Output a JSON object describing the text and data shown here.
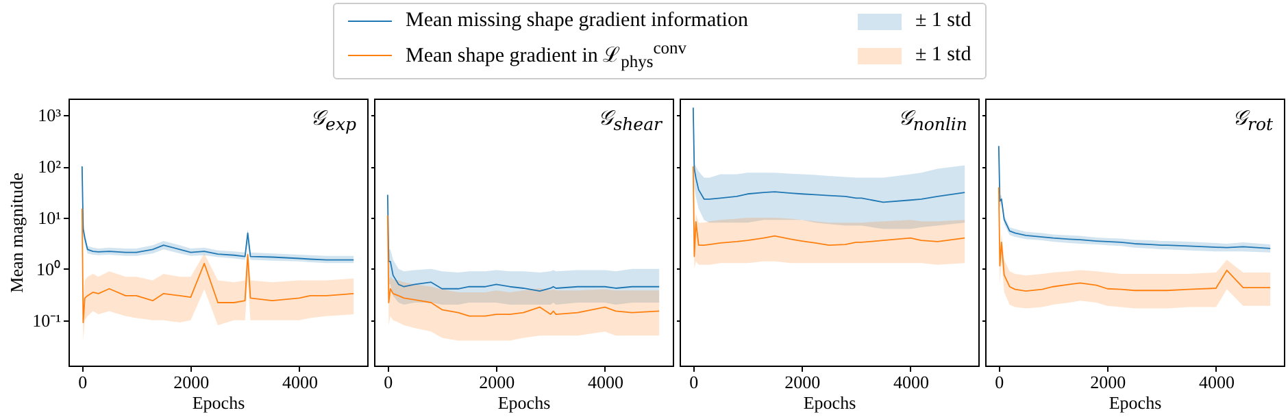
{
  "chart_data": [
    {
      "type": "line",
      "annotations": [
        "𝒢$_{exp}$",
        "± 1 std",
        "± 1 std"
      ],
      "ylabel": "Mean magnitude",
      "xlabel": "Epochs",
      "legend": "top",
      "log": true,
      "xlim": [
        -250,
        5250
      ],
      "xticks": [
        0,
        2000,
        4000
      ],
      "ylim": [
        0.013,
        2100
      ],
      "yticks": [
        {
          "value": 0.1,
          "label": "10⁻¹"
        },
        {
          "value": 1,
          "label": "10⁰"
        },
        {
          "value": 10,
          "label": "10¹"
        },
        {
          "value": 100,
          "label": "10²"
        },
        {
          "value": 1000,
          "label": "10³"
        }
      ],
      "x": [
        0,
        20,
        50,
        100,
        200,
        300,
        500,
        800,
        1000,
        1300,
        1500,
        1800,
        2000,
        2250,
        2500,
        2800,
        3000,
        3050,
        3100,
        3500,
        4000,
        4200,
        4500,
        5000
      ],
      "series": [
        {
          "name": "Mean missing shape gradient information",
          "color": "#1f77b4",
          "values": [
            100,
            6,
            4,
            2.4,
            2.2,
            2.15,
            2.2,
            2.1,
            2.1,
            2.4,
            2.9,
            2.4,
            2.1,
            2.2,
            1.95,
            1.85,
            1.75,
            5,
            1.75,
            1.7,
            1.6,
            1.55,
            1.5,
            1.5
          ],
          "lower": [
            60,
            4.5,
            3.2,
            2,
            1.9,
            1.85,
            1.9,
            1.8,
            1.8,
            2,
            2.4,
            2,
            1.8,
            1.85,
            1.7,
            1.6,
            1.5,
            3,
            1.5,
            1.45,
            1.4,
            1.35,
            1.3,
            1.3
          ],
          "upper": [
            130,
            8,
            5,
            2.8,
            2.6,
            2.5,
            2.6,
            2.5,
            2.5,
            2.9,
            3.5,
            2.9,
            2.5,
            2.6,
            2.3,
            2.2,
            2.1,
            6,
            2.1,
            2,
            1.9,
            1.85,
            1.8,
            1.8
          ]
        },
        {
          "name": "Mean shape gradient in ℒ$_{phys}$$^{conv}$",
          "color": "#ff7f0e",
          "values": [
            15,
            0.09,
            0.27,
            0.3,
            0.35,
            0.33,
            0.41,
            0.3,
            0.3,
            0.24,
            0.33,
            0.3,
            0.28,
            1.28,
            0.22,
            0.22,
            0.24,
            1.9,
            0.27,
            0.24,
            0.27,
            0.3,
            0.3,
            0.33
          ],
          "lower": [
            5,
            0.04,
            0.1,
            0.12,
            0.15,
            0.13,
            0.15,
            0.12,
            0.11,
            0.1,
            0.1,
            0.09,
            0.1,
            0.4,
            0.08,
            0.1,
            0.1,
            0.6,
            0.1,
            0.1,
            0.1,
            0.11,
            0.12,
            0.13
          ],
          "upper": [
            20,
            0.25,
            0.6,
            0.7,
            0.8,
            0.7,
            0.9,
            0.7,
            0.7,
            0.6,
            0.8,
            0.7,
            0.7,
            2,
            0.6,
            0.55,
            0.6,
            2.5,
            0.6,
            0.55,
            0.6,
            0.6,
            0.6,
            0.65
          ]
        }
      ]
    },
    {
      "type": "line",
      "annotations": [
        "𝒢$_{shear}$"
      ],
      "xlabel": "Epochs",
      "log": true,
      "tick_labels": "x",
      "xlim": [
        -250,
        5250
      ],
      "xticks": [
        0,
        2000,
        4000
      ],
      "ylim": [
        0.013,
        2100
      ],
      "yticks": [
        0.1,
        1,
        10,
        100,
        1000
      ],
      "x": [
        0,
        20,
        50,
        100,
        200,
        300,
        500,
        800,
        1000,
        1300,
        1500,
        1800,
        2000,
        2250,
        2500,
        2800,
        3000,
        3050,
        3100,
        3500,
        4000,
        4200,
        4500,
        5000
      ],
      "series": [
        {
          "color": "#1f77b4",
          "values": [
            28,
            1.4,
            1.4,
            0.75,
            0.5,
            0.45,
            0.5,
            0.55,
            0.41,
            0.41,
            0.45,
            0.45,
            0.5,
            0.45,
            0.42,
            0.37,
            0.42,
            0.45,
            0.42,
            0.45,
            0.45,
            0.42,
            0.45,
            0.45
          ],
          "lower": [
            20,
            0.5,
            0.5,
            0.3,
            0.22,
            0.2,
            0.22,
            0.22,
            0.2,
            0.2,
            0.22,
            0.22,
            0.22,
            0.2,
            0.2,
            0.2,
            0.2,
            0.22,
            0.2,
            0.22,
            0.22,
            0.2,
            0.22,
            0.22
          ],
          "upper": [
            30,
            2.4,
            2.4,
            1.5,
            1,
            0.9,
            0.95,
            1,
            0.9,
            0.85,
            0.9,
            0.9,
            0.95,
            0.9,
            0.9,
            0.85,
            0.9,
            0.95,
            0.9,
            0.95,
            0.95,
            0.9,
            1,
            1
          ]
        },
        {
          "color": "#ff7f0e",
          "values": [
            11,
            0.22,
            0.41,
            0.33,
            0.3,
            0.27,
            0.25,
            0.22,
            0.16,
            0.14,
            0.12,
            0.12,
            0.13,
            0.13,
            0.14,
            0.18,
            0.13,
            0.15,
            0.13,
            0.14,
            0.18,
            0.15,
            0.14,
            0.15
          ],
          "lower": [
            8,
            0.08,
            0.12,
            0.1,
            0.09,
            0.08,
            0.07,
            0.06,
            0.045,
            0.04,
            0.04,
            0.04,
            0.04,
            0.04,
            0.045,
            0.05,
            0.05,
            0.05,
            0.05,
            0.05,
            0.06,
            0.05,
            0.05,
            0.05
          ],
          "upper": [
            14,
            0.6,
            0.7,
            0.62,
            0.6,
            0.55,
            0.5,
            0.45,
            0.4,
            0.35,
            0.35,
            0.35,
            0.38,
            0.35,
            0.38,
            0.42,
            0.38,
            0.4,
            0.38,
            0.38,
            0.4,
            0.38,
            0.38,
            0.38
          ]
        }
      ]
    },
    {
      "type": "line",
      "annotations": [
        "𝒢$_{nonlin}$"
      ],
      "xlabel": "Epochs",
      "log": true,
      "tick_labels": "x",
      "xlim": [
        -250,
        5250
      ],
      "xticks": [
        0,
        2000,
        4000
      ],
      "ylim": [
        0.013,
        2100
      ],
      "yticks": [
        0.1,
        1,
        10,
        100,
        1000
      ],
      "x": [
        0,
        20,
        50,
        100,
        200,
        300,
        500,
        800,
        1000,
        1300,
        1500,
        1800,
        2000,
        2250,
        2500,
        2800,
        3000,
        3050,
        3100,
        3500,
        4000,
        4200,
        4500,
        5000
      ],
      "series": [
        {
          "color": "#1f77b4",
          "values": [
            1400,
            90,
            59,
            35,
            23,
            23,
            24,
            26,
            29,
            31,
            32,
            30,
            29,
            28,
            27,
            26,
            24,
            24,
            24,
            20,
            22,
            23,
            26,
            31
          ],
          "lower": [
            1000,
            40,
            25,
            15,
            9,
            8,
            8,
            8,
            8,
            9,
            9,
            9,
            9,
            8,
            7.5,
            7,
            7,
            7,
            7,
            6,
            6,
            6.5,
            7,
            8
          ],
          "upper": [
            1600,
            110,
            100,
            80,
            60,
            60,
            70,
            70,
            75,
            75,
            75,
            72,
            70,
            68,
            65,
            62,
            60,
            60,
            60,
            60,
            70,
            75,
            90,
            105
          ]
        },
        {
          "color": "#ff7f0e",
          "values": [
            100,
            1.75,
            8.3,
            2.9,
            2.9,
            3,
            3.2,
            3.4,
            3.6,
            4,
            4.4,
            3.8,
            3.5,
            3.2,
            2.9,
            3,
            3.3,
            3.3,
            3.3,
            3.6,
            4,
            3.6,
            3.4,
            4
          ],
          "lower": [
            70,
            1,
            1.4,
            1.2,
            1.2,
            1.2,
            1.3,
            1.3,
            1.3,
            1.4,
            1.4,
            1.3,
            1.3,
            1.3,
            1.3,
            1.3,
            1.3,
            1.3,
            1.3,
            1.3,
            1.3,
            1.3,
            1.2,
            1.3
          ],
          "upper": [
            120,
            5,
            12,
            8,
            8,
            8.5,
            9,
            9.5,
            10,
            10,
            10,
            9.5,
            9,
            8.5,
            8,
            8,
            8,
            8,
            8,
            8.5,
            9,
            8.5,
            8.5,
            9
          ]
        }
      ]
    },
    {
      "type": "line",
      "annotations": [
        "𝒢$_{rot}$"
      ],
      "xlabel": "Epochs",
      "log": true,
      "tick_labels": "x",
      "xlim": [
        -250,
        5250
      ],
      "xticks": [
        0,
        2000,
        4000
      ],
      "ylim": [
        0.013,
        2100
      ],
      "yticks": [
        0.1,
        1,
        10,
        100,
        1000
      ],
      "x": [
        0,
        20,
        50,
        100,
        200,
        300,
        500,
        800,
        1000,
        1300,
        1500,
        1800,
        2000,
        2250,
        2500,
        2800,
        3000,
        3050,
        3100,
        3500,
        4000,
        4200,
        4500,
        5000
      ],
      "series": [
        {
          "color": "#1f77b4",
          "values": [
            250,
            21,
            23,
            9.2,
            5.5,
            5,
            4.5,
            4.2,
            4,
            3.8,
            3.7,
            3.5,
            3.4,
            3.3,
            3.1,
            3,
            2.9,
            2.9,
            2.9,
            2.8,
            2.65,
            2.6,
            2.7,
            2.5
          ],
          "lower": [
            180,
            16,
            18,
            7.5,
            4.6,
            4.2,
            3.8,
            3.6,
            3.4,
            3.2,
            3.1,
            3,
            2.9,
            2.8,
            2.6,
            2.5,
            2.4,
            2.4,
            2.4,
            2.3,
            2.2,
            2.2,
            2.2,
            2.1
          ],
          "upper": [
            320,
            26,
            28,
            11,
            6.5,
            6,
            5.3,
            5,
            4.7,
            4.5,
            4.4,
            4.1,
            4,
            3.9,
            3.7,
            3.6,
            3.5,
            3.5,
            3.5,
            3.4,
            3.2,
            3.1,
            3.3,
            3
          ]
        },
        {
          "color": "#ff7f0e",
          "values": [
            39,
            1.15,
            3.3,
            0.76,
            0.45,
            0.4,
            0.37,
            0.4,
            0.45,
            0.5,
            0.53,
            0.48,
            0.41,
            0.4,
            0.38,
            0.38,
            0.38,
            0.38,
            0.38,
            0.4,
            0.42,
            0.94,
            0.43,
            0.43
          ],
          "lower": [
            25,
            0.5,
            1.5,
            0.35,
            0.2,
            0.18,
            0.17,
            0.18,
            0.2,
            0.22,
            0.24,
            0.22,
            0.19,
            0.18,
            0.17,
            0.17,
            0.17,
            0.17,
            0.17,
            0.18,
            0.18,
            0.4,
            0.19,
            0.19
          ],
          "upper": [
            45,
            2,
            5,
            1.5,
            0.9,
            0.8,
            0.75,
            0.8,
            0.85,
            0.9,
            0.95,
            0.9,
            0.85,
            0.8,
            0.8,
            0.8,
            0.8,
            0.8,
            0.8,
            0.8,
            0.85,
            1.5,
            0.85,
            0.85
          ]
        }
      ]
    }
  ]
}
